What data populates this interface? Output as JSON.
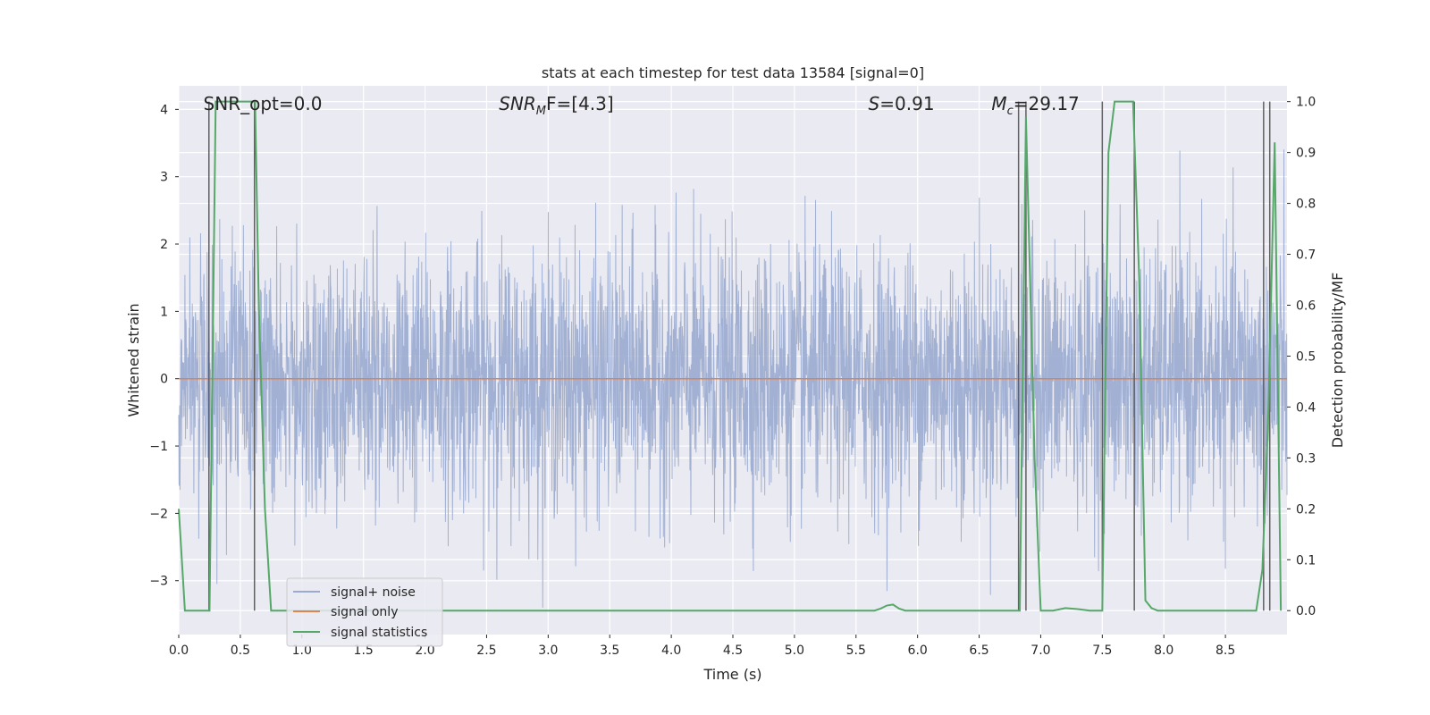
{
  "chart_data": {
    "type": "line",
    "title": "stats at each timestep for test data 13584 [signal=0]",
    "xlabel": "Time (s)",
    "ylabel_left": "Whitened strain",
    "ylabel_right": "Detection probability/MF",
    "xlim": [
      0.0,
      9.0
    ],
    "ylim_left": [
      -3.8,
      4.35
    ],
    "ylim_right": [
      -0.047,
      1.031
    ],
    "x_ticks": [
      "0.0",
      "0.5",
      "1.0",
      "1.5",
      "2.0",
      "2.5",
      "3.0",
      "3.5",
      "4.0",
      "4.5",
      "5.0",
      "5.5",
      "6.0",
      "6.5",
      "7.0",
      "7.5",
      "8.0",
      "8.5"
    ],
    "y_ticks_left": [
      "4",
      "3",
      "2",
      "1",
      "0",
      "−1",
      "−2",
      "−3"
    ],
    "y_ticks_right": [
      "1.0",
      "0.9",
      "0.8",
      "0.7",
      "0.6",
      "0.5",
      "0.4",
      "0.3",
      "0.2",
      "0.1",
      "0.0"
    ],
    "grid": true,
    "legend_position": "bottom-left",
    "annotations": [
      {
        "pre": "SNR_opt=0.0",
        "sym": "",
        "sub": "",
        "post": "",
        "data_x": 0.2
      },
      {
        "pre": "",
        "sym": "SNR",
        "sub": "M",
        "post": "F=[4.3]",
        "data_x": 2.6
      },
      {
        "pre": "",
        "sym": "S",
        "sub": "",
        "post": "=0.91",
        "data_x": 5.6
      },
      {
        "pre": "",
        "sym": "M",
        "sub": "c",
        "post": "=29.17",
        "data_x": 6.6
      }
    ],
    "series": [
      {
        "name": "signal+ noise",
        "color": "#9aabcf",
        "description_values": {
          "typical_envelope": [
            -1.7,
            1.75
          ],
          "peak_max": 4.0,
          "peak_min": -3.4
        }
      },
      {
        "name": "signal only",
        "color": "#dd8452",
        "values_constant": 0.0
      },
      {
        "name": "signal statistics",
        "color": "#55a868",
        "x": [
          0.0,
          0.05,
          0.1,
          0.15,
          0.2,
          0.25,
          0.3,
          0.35,
          0.4,
          0.45,
          0.5,
          0.55,
          0.6,
          0.62,
          0.65,
          0.7,
          0.75,
          0.8,
          5.5,
          5.6,
          5.65,
          5.7,
          5.75,
          5.8,
          5.85,
          5.9,
          6.0,
          6.5,
          6.8,
          6.83,
          6.88,
          6.95,
          7.0,
          7.1,
          7.2,
          7.3,
          7.4,
          7.45,
          7.5,
          7.55,
          7.6,
          7.65,
          7.7,
          7.75,
          7.8,
          7.85,
          7.9,
          7.95,
          8.0,
          8.1,
          8.5,
          8.75,
          8.8,
          8.85,
          8.9,
          8.95
        ],
        "values": [
          0.2,
          0.0,
          0.0,
          0.0,
          0.0,
          0.0,
          1.0,
          1.0,
          1.0,
          1.0,
          1.0,
          1.0,
          1.0,
          1.0,
          0.6,
          0.2,
          0.0,
          0.0,
          0.0,
          0.0,
          0.0,
          0.004,
          0.01,
          0.012,
          0.004,
          0.0,
          0.0,
          0.0,
          0.0,
          0.0,
          0.97,
          0.3,
          0.0,
          0.0,
          0.005,
          0.003,
          0.0,
          0.0,
          0.0,
          0.9,
          1.0,
          1.0,
          1.0,
          1.0,
          0.65,
          0.02,
          0.005,
          0.0,
          0.0,
          0.0,
          0.0,
          0.0,
          0.08,
          0.4,
          0.92,
          0.0
        ]
      },
      {
        "name": "",
        "color": "#606060",
        "vertical_lines_x": [
          0.245,
          0.615,
          6.82,
          6.88,
          7.5,
          7.76,
          8.81,
          8.86
        ]
      }
    ]
  },
  "legend": {
    "items": [
      {
        "label": "signal+ noise",
        "color": "#9aabcf"
      },
      {
        "label": "signal only",
        "color": "#dd8452"
      },
      {
        "label": "signal statistics",
        "color": "#55a868"
      }
    ]
  }
}
